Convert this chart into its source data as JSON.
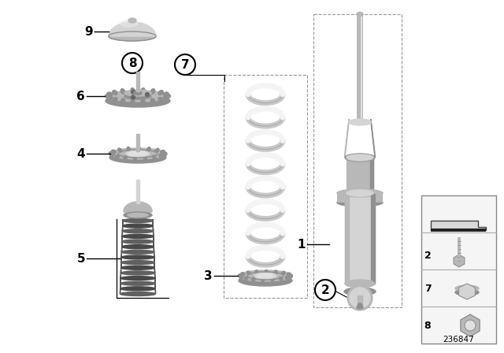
{
  "bg_color": "#ffffff",
  "part_number": "236847",
  "label_color": "#000000",
  "gray_light": "#d4d4d4",
  "gray_mid": "#b8b8b8",
  "gray_dark": "#909090",
  "gray_very_dark": "#686868",
  "spring_white": "#f0f0f0",
  "spring_shadow": "#c8c8c8",
  "boot_color": "#787878",
  "boot_dark": "#505050",
  "sidebar_bg": "#f0f0f0",
  "sidebar_border": "#888888",
  "line_color": "#888888",
  "label_fontsize": 11,
  "small_label_fontsize": 9
}
